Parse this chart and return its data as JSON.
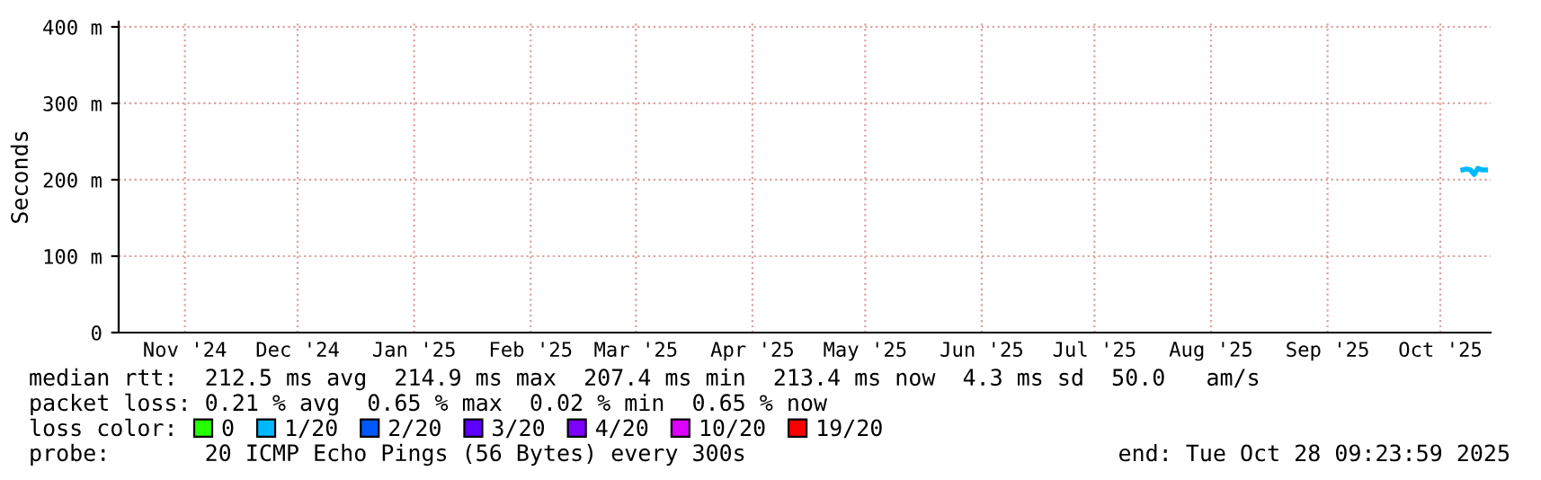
{
  "chart_data": {
    "type": "line",
    "ylabel": "Seconds",
    "x": [
      "2025-10-21",
      "2025-10-22",
      "2025-10-23",
      "2025-10-24",
      "2025-10-25",
      "2025-10-26",
      "2025-10-27"
    ],
    "series": [
      {
        "name": "0",
        "color": "#26ff00",
        "values": [
          null,
          null,
          null,
          null,
          null,
          null,
          null
        ]
      },
      {
        "name": "1/20",
        "color": "#00b8ff",
        "values": [
          213,
          214,
          213,
          207,
          215,
          213,
          213
        ]
      },
      {
        "name": "2/20",
        "color": "#0059ff",
        "values": [
          null,
          null,
          null,
          null,
          null,
          null,
          null
        ]
      },
      {
        "name": "3/20",
        "color": "#5e00ff",
        "values": [
          null,
          null,
          null,
          null,
          null,
          null,
          null
        ]
      },
      {
        "name": "4/20",
        "color": "#7e00ff",
        "values": [
          null,
          null,
          null,
          null,
          null,
          null,
          null
        ]
      },
      {
        "name": "10/20",
        "color": "#dd00ff",
        "values": [
          null,
          null,
          null,
          null,
          null,
          null,
          null
        ]
      },
      {
        "name": "19/20",
        "color": "#ff0000",
        "values": [
          null,
          null,
          null,
          null,
          null,
          null,
          null
        ]
      }
    ],
    "legend_title": "loss color:",
    "legend": "bottom",
    "grid": true,
    "marker": "none",
    "line_style": "solid",
    "xlim": [
      "2024-10-28T09:24",
      "2025-10-28T09:24"
    ],
    "xticks": [
      {
        "value": "2024-11-15",
        "label": "Nov '24"
      },
      {
        "value": "2024-12-15",
        "label": "Dec '24"
      },
      {
        "value": "2025-01-15",
        "label": "Jan '25"
      },
      {
        "value": "2025-02-15",
        "label": "Feb '25"
      },
      {
        "value": "2025-03-15",
        "label": "Mar '25"
      },
      {
        "value": "2025-04-15",
        "label": "Apr '25"
      },
      {
        "value": "2025-05-15",
        "label": "May '25"
      },
      {
        "value": "2025-06-15",
        "label": "Jun '25"
      },
      {
        "value": "2025-07-15",
        "label": "Jul '25"
      },
      {
        "value": "2025-08-15",
        "label": "Aug '25"
      },
      {
        "value": "2025-09-15",
        "label": "Sep '25"
      },
      {
        "value": "2025-10-15",
        "label": "Oct '25"
      }
    ],
    "ylim": [
      0,
      407
    ],
    "yticks": [
      0,
      {
        "value": 100,
        "label": "100 m"
      },
      {
        "value": 200,
        "label": "200 m"
      },
      {
        "value": 300,
        "label": "300 m"
      },
      {
        "value": 400,
        "label": "400 m"
      }
    ],
    "annotations": [
      "median rtt:  212.5 ms avg  214.9 ms max  207.4 ms min  213.4 ms now  4.3 ms sd  50.0   am/s",
      "packet loss: 0.21 % avg  0.65 % max  0.02 % min  0.65 % now",
      "probe:       20 ICMP Echo Pings (56 Bytes) every 300s",
      "end: Tue Oct 28 09:23:59 2025"
    ]
  }
}
